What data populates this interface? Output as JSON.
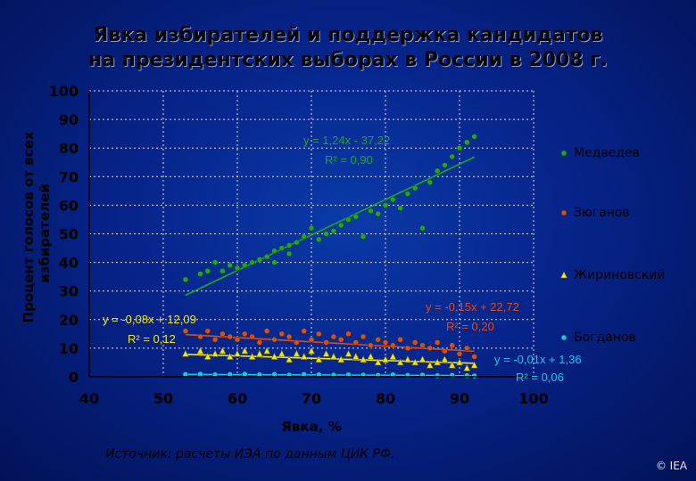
{
  "chart_data": {
    "type": "scatter",
    "title_line1": "Явка избирателей и поддержка кандидатов",
    "title_line2": "на президентских выборах в России в 2008 г.",
    "xlabel": "Явка, %",
    "ylabel_line1": "Процент голосов от всех",
    "ylabel_line2": "избирателей",
    "xlim": [
      40,
      100
    ],
    "ylim": [
      0,
      100
    ],
    "xticks": [
      40,
      50,
      60,
      70,
      80,
      90,
      100
    ],
    "yticks": [
      0,
      10,
      20,
      30,
      40,
      50,
      60,
      70,
      80,
      90,
      100
    ],
    "grid": true,
    "legend_placement": "right",
    "series": [
      {
        "name": "Медведев",
        "color": "#1fa81f",
        "marker": "circle",
        "points": [
          [
            53,
            34
          ],
          [
            55,
            36
          ],
          [
            56,
            37
          ],
          [
            57,
            40
          ],
          [
            58,
            37
          ],
          [
            59,
            39
          ],
          [
            60,
            38
          ],
          [
            61,
            39
          ],
          [
            62,
            40
          ],
          [
            63,
            41
          ],
          [
            64,
            42
          ],
          [
            65,
            44
          ],
          [
            66,
            45
          ],
          [
            67,
            46
          ],
          [
            68,
            47
          ],
          [
            69,
            49
          ],
          [
            70,
            52
          ],
          [
            71,
            48
          ],
          [
            72,
            50
          ],
          [
            74,
            53
          ],
          [
            75,
            55
          ],
          [
            76,
            56
          ],
          [
            78,
            58
          ],
          [
            79,
            57
          ],
          [
            80,
            60
          ],
          [
            81,
            62
          ],
          [
            83,
            64
          ],
          [
            84,
            66
          ],
          [
            86,
            68
          ],
          [
            87,
            72
          ],
          [
            88,
            74
          ],
          [
            89,
            77
          ],
          [
            90,
            80
          ],
          [
            91,
            82
          ],
          [
            92,
            84
          ],
          [
            65,
            40
          ],
          [
            67,
            43
          ],
          [
            73,
            51
          ],
          [
            77,
            49
          ],
          [
            82,
            59
          ],
          [
            85,
            52
          ]
        ],
        "fit": {
          "slope": 1.24,
          "intercept": -37.22,
          "x_range": [
            53,
            92
          ]
        },
        "equation": "y = 1,24x - 37,22",
        "r2": "R² = 0,90"
      },
      {
        "name": "Зюганов",
        "color": "#e04a1a",
        "marker": "circle",
        "points": [
          [
            53,
            16
          ],
          [
            55,
            14
          ],
          [
            56,
            16
          ],
          [
            57,
            13
          ],
          [
            58,
            15
          ],
          [
            59,
            14
          ],
          [
            60,
            13
          ],
          [
            61,
            15
          ],
          [
            62,
            14
          ],
          [
            63,
            12
          ],
          [
            64,
            16
          ],
          [
            65,
            13
          ],
          [
            66,
            15
          ],
          [
            67,
            14
          ],
          [
            68,
            12
          ],
          [
            69,
            16
          ],
          [
            70,
            13
          ],
          [
            71,
            15
          ],
          [
            72,
            12
          ],
          [
            73,
            14
          ],
          [
            74,
            13
          ],
          [
            75,
            15
          ],
          [
            76,
            12
          ],
          [
            77,
            14
          ],
          [
            78,
            11
          ],
          [
            79,
            13
          ],
          [
            80,
            12
          ],
          [
            81,
            11
          ],
          [
            82,
            13
          ],
          [
            83,
            10
          ],
          [
            84,
            12
          ],
          [
            85,
            11
          ],
          [
            86,
            10
          ],
          [
            87,
            12
          ],
          [
            88,
            9
          ],
          [
            89,
            11
          ],
          [
            90,
            8
          ],
          [
            91,
            10
          ],
          [
            92,
            7
          ]
        ],
        "fit": {
          "slope": -0.15,
          "intercept": 22.72,
          "x_range": [
            53,
            92
          ]
        },
        "equation": "y = -0,15x + 22,72",
        "r2": "R² = 0,20"
      },
      {
        "name": "Жириновский",
        "color": "#f2e41a",
        "marker": "triangle",
        "points": [
          [
            53,
            8
          ],
          [
            55,
            9
          ],
          [
            56,
            7
          ],
          [
            57,
            8
          ],
          [
            58,
            9
          ],
          [
            59,
            7
          ],
          [
            60,
            8
          ],
          [
            61,
            9
          ],
          [
            62,
            7
          ],
          [
            63,
            8
          ],
          [
            64,
            9
          ],
          [
            65,
            7
          ],
          [
            66,
            8
          ],
          [
            67,
            6
          ],
          [
            68,
            8
          ],
          [
            69,
            7
          ],
          [
            70,
            9
          ],
          [
            71,
            6
          ],
          [
            72,
            8
          ],
          [
            73,
            7
          ],
          [
            74,
            6
          ],
          [
            75,
            8
          ],
          [
            76,
            7
          ],
          [
            77,
            6
          ],
          [
            78,
            7
          ],
          [
            79,
            5
          ],
          [
            80,
            6
          ],
          [
            81,
            7
          ],
          [
            82,
            5
          ],
          [
            83,
            6
          ],
          [
            84,
            5
          ],
          [
            85,
            6
          ],
          [
            86,
            4
          ],
          [
            87,
            5
          ],
          [
            88,
            6
          ],
          [
            89,
            4
          ],
          [
            90,
            5
          ],
          [
            91,
            3
          ],
          [
            92,
            4
          ]
        ],
        "fit": {
          "slope": -0.08,
          "intercept": 12.09,
          "x_range": [
            53,
            92
          ]
        },
        "equation": "y = -0,08x + 12,09",
        "r2": "R² = 0,12"
      },
      {
        "name": "Богданов",
        "color": "#16c8e8",
        "marker": "circle",
        "points": [
          [
            53,
            0.8
          ],
          [
            55,
            0.9
          ],
          [
            57,
            0.7
          ],
          [
            59,
            0.8
          ],
          [
            61,
            0.9
          ],
          [
            63,
            0.7
          ],
          [
            65,
            0.8
          ],
          [
            67,
            0.6
          ],
          [
            69,
            0.8
          ],
          [
            71,
            0.7
          ],
          [
            73,
            0.6
          ],
          [
            75,
            0.7
          ],
          [
            77,
            0.6
          ],
          [
            79,
            0.5
          ],
          [
            81,
            0.7
          ],
          [
            83,
            0.5
          ],
          [
            85,
            0.6
          ],
          [
            87,
            0.4
          ],
          [
            89,
            0.5
          ],
          [
            91,
            0.4
          ],
          [
            92,
            0.3
          ]
        ],
        "fit": {
          "slope": -0.01,
          "intercept": 1.36,
          "x_range": [
            53,
            92
          ]
        },
        "equation": "y = -0,01x + 1,36",
        "r2": "R² = 0,06"
      }
    ]
  },
  "source": "Источник:  расчеты ИЭА по данным ЦИК РФ.",
  "copyright": "© IEA"
}
